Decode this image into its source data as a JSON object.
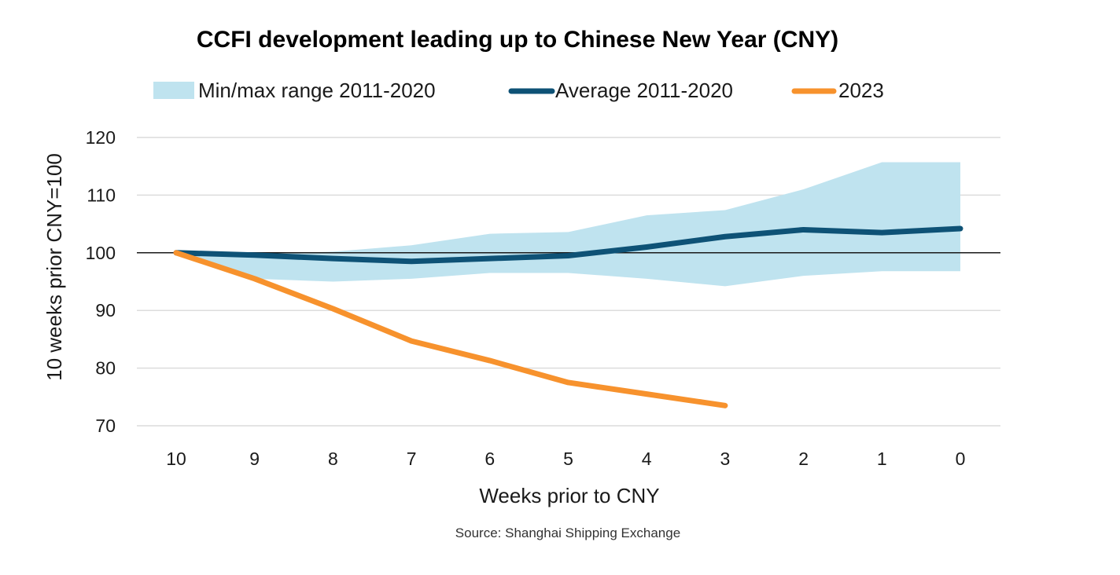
{
  "chart_data": {
    "type": "line",
    "title": "CCFI development leading up to Chinese New Year (CNY)",
    "xlabel": "Weeks prior to CNY",
    "ylabel": "10 weeks prior CNY=100",
    "source": "Source: Shanghai Shipping Exchange",
    "x_ticks": [
      "10",
      "9",
      "8",
      "7",
      "6",
      "5",
      "4",
      "3",
      "2",
      "1",
      "0"
    ],
    "y_ticks": [
      "120",
      "110",
      "100",
      "90",
      "80",
      "70"
    ],
    "x": [
      10,
      9,
      8,
      7,
      6,
      5,
      4,
      3,
      2,
      1,
      0
    ],
    "ylim": [
      70,
      120
    ],
    "xlim": [
      10,
      0
    ],
    "reference_line": 100,
    "grid": "horizontal",
    "legend_position": "top",
    "band": {
      "name": "Min/max range 2011-2020",
      "min": [
        100,
        95.5,
        95,
        95.5,
        96.5,
        96.5,
        95.5,
        94.2,
        96,
        96.8,
        96.8
      ],
      "max": [
        100,
        99.8,
        100.2,
        101.3,
        103.3,
        103.6,
        106.5,
        107.4,
        111,
        115.7,
        115.7
      ],
      "color": "#bfe3ef"
    },
    "series": [
      {
        "name": "Average 2011-2020",
        "color": "#0e5276",
        "values": [
          100,
          99.6,
          99,
          98.5,
          99,
          99.5,
          101,
          102.8,
          104,
          103.5,
          104.2
        ]
      },
      {
        "name": "2023",
        "color": "#f7922d",
        "values": [
          100,
          95.5,
          90.3,
          84.7,
          81.3,
          77.5,
          75.5,
          73.5,
          null,
          null,
          null
        ]
      }
    ]
  }
}
